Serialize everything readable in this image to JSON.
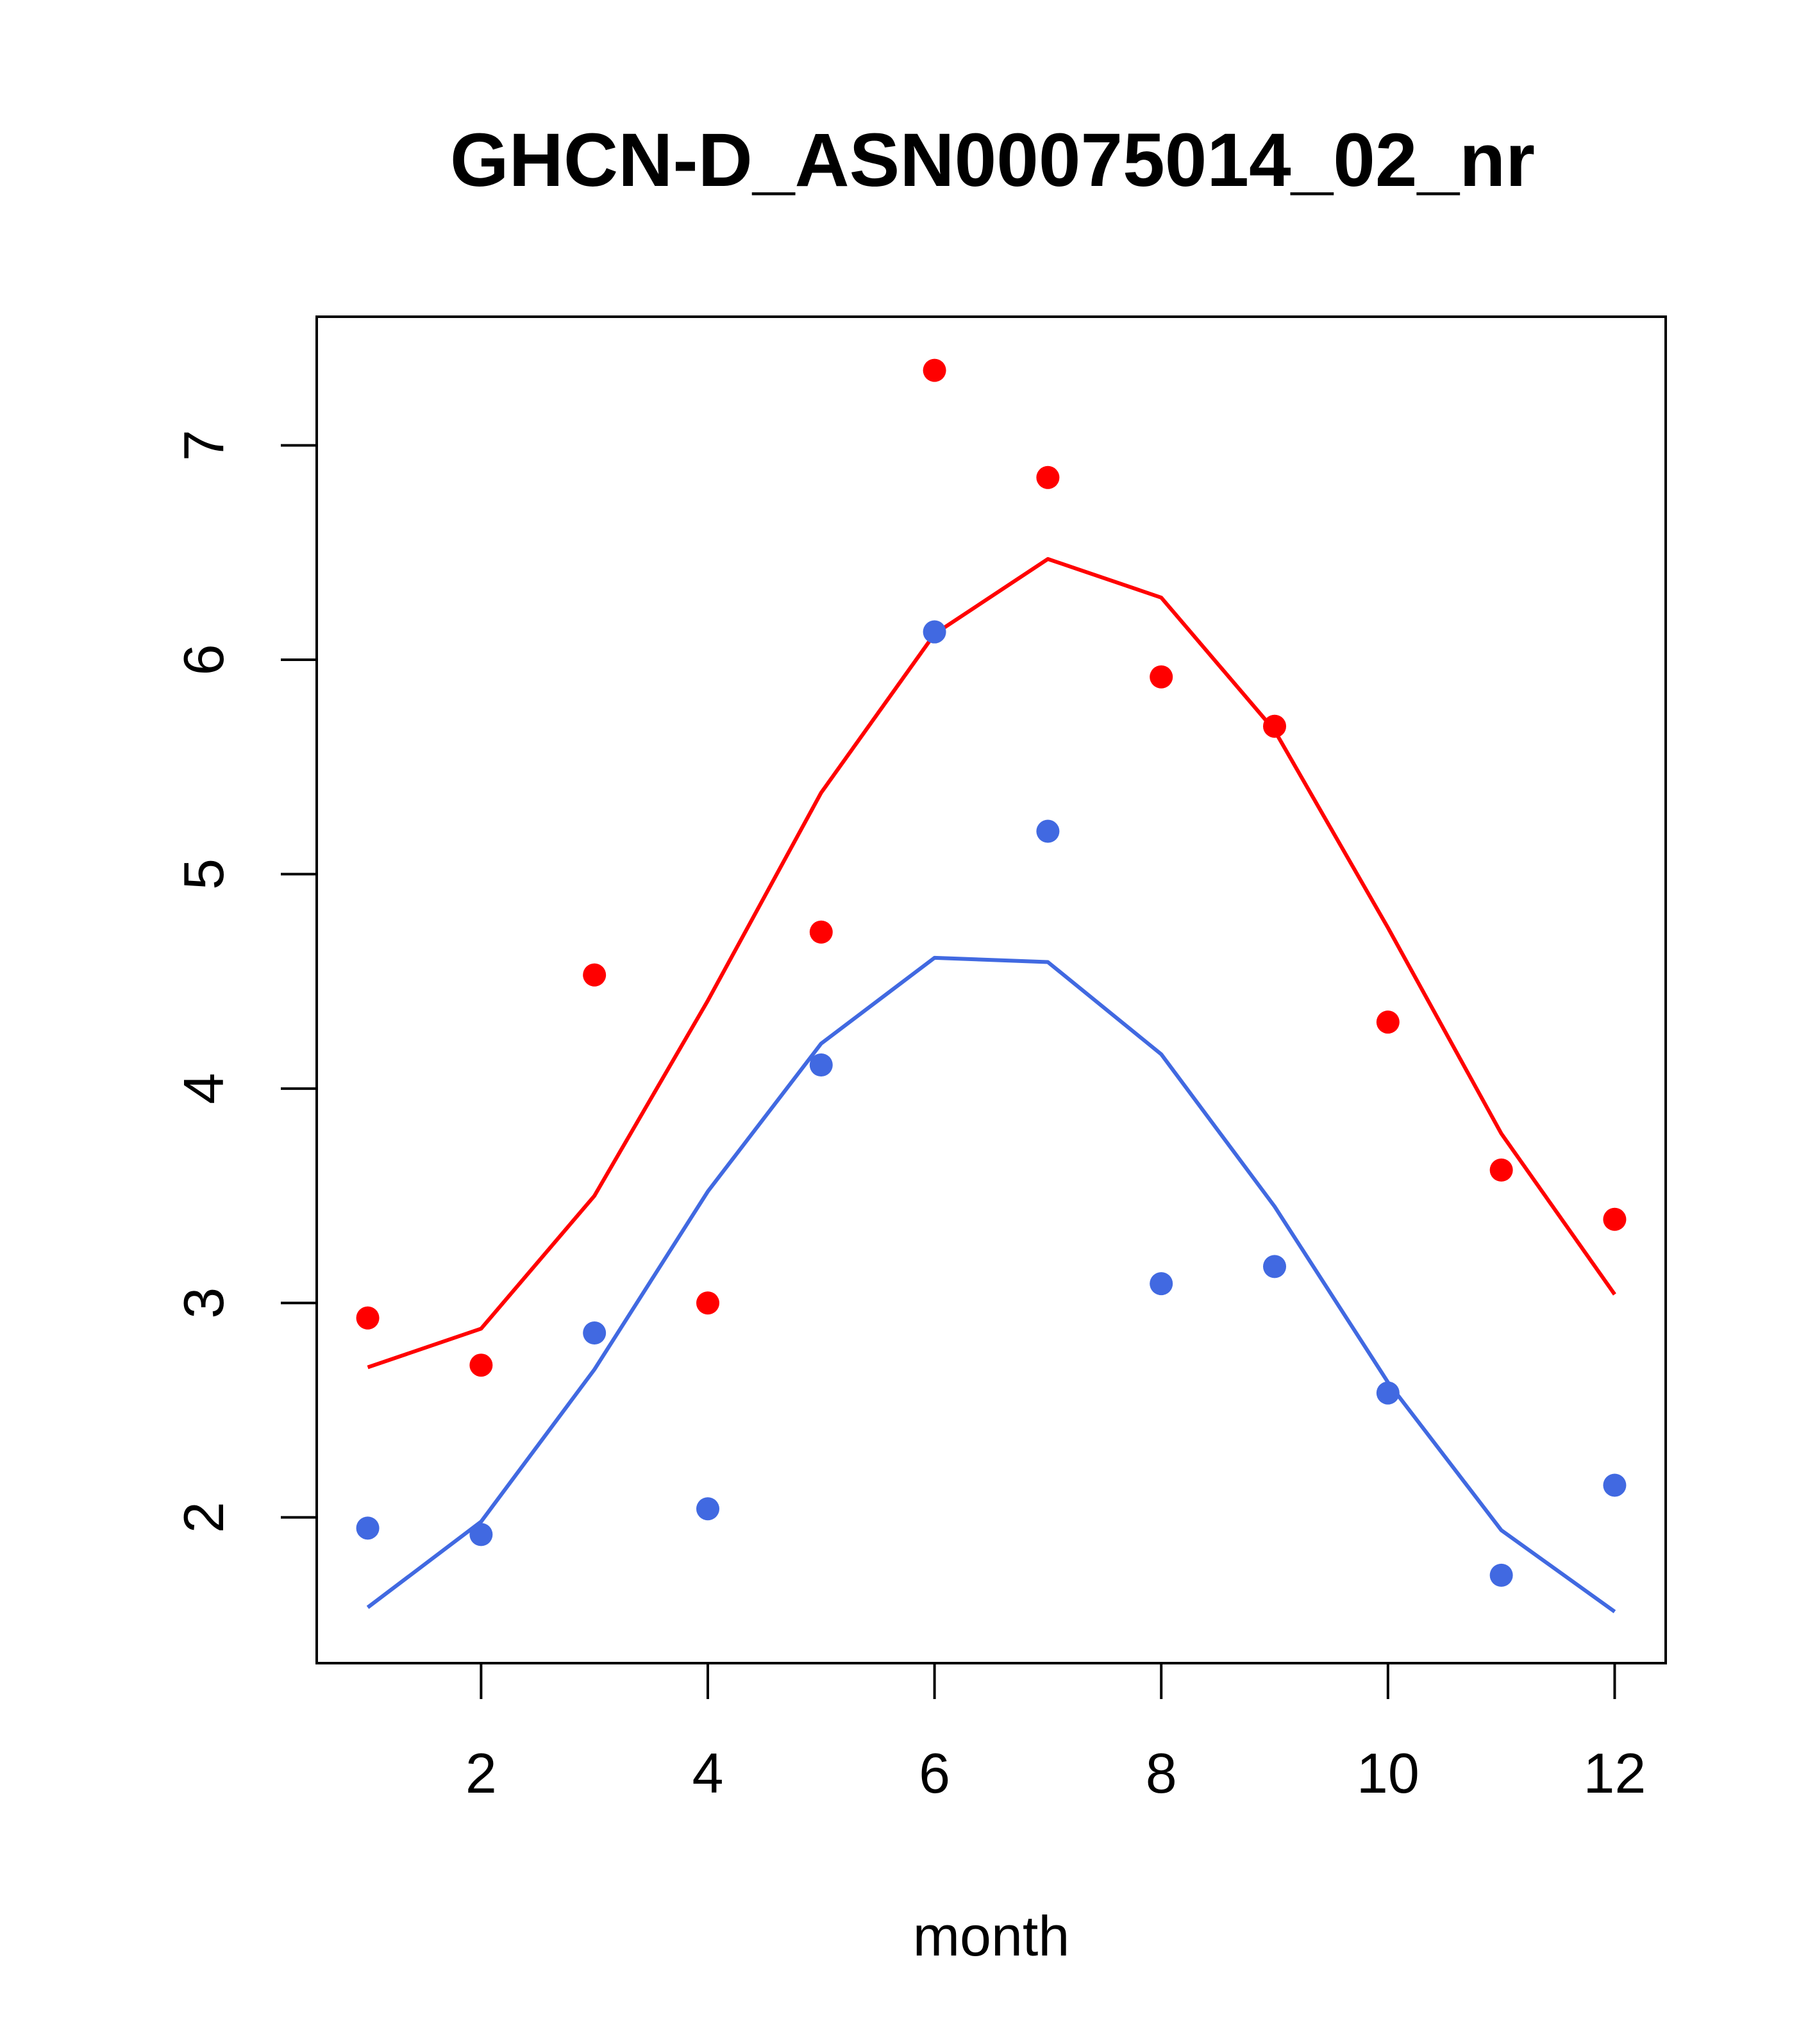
{
  "chart_data": {
    "type": "scatter",
    "title": "GHCN-D_ASN00075014_02_nr",
    "xlabel": "month",
    "ylabel": "",
    "xlim": [
      0.55,
      12.45
    ],
    "ylim": [
      1.32,
      7.6
    ],
    "xticks": [
      2,
      4,
      6,
      8,
      10,
      12
    ],
    "yticks": [
      2,
      3,
      4,
      5,
      6,
      7
    ],
    "grid": false,
    "legend": "none",
    "x": [
      1,
      2,
      3,
      4,
      5,
      6,
      7,
      8,
      9,
      10,
      11,
      12
    ],
    "series": [
      {
        "color": "#ff0000",
        "points": [
          2.93,
          2.71,
          4.53,
          3.0,
          4.73,
          7.35,
          6.85,
          5.92,
          5.69,
          4.31,
          3.62,
          3.39
        ],
        "line": [
          2.7,
          2.88,
          3.5,
          4.41,
          5.38,
          6.12,
          6.47,
          6.29,
          5.67,
          4.75,
          3.79,
          3.04
        ]
      },
      {
        "color": "#4169e1",
        "points": [
          1.95,
          1.92,
          2.86,
          2.04,
          4.11,
          6.13,
          5.2,
          3.09,
          3.17,
          2.58,
          1.73,
          2.15
        ],
        "line": [
          1.58,
          1.98,
          2.69,
          3.52,
          4.21,
          4.61,
          4.59,
          4.16,
          3.45,
          2.63,
          1.94,
          1.56
        ]
      }
    ]
  }
}
